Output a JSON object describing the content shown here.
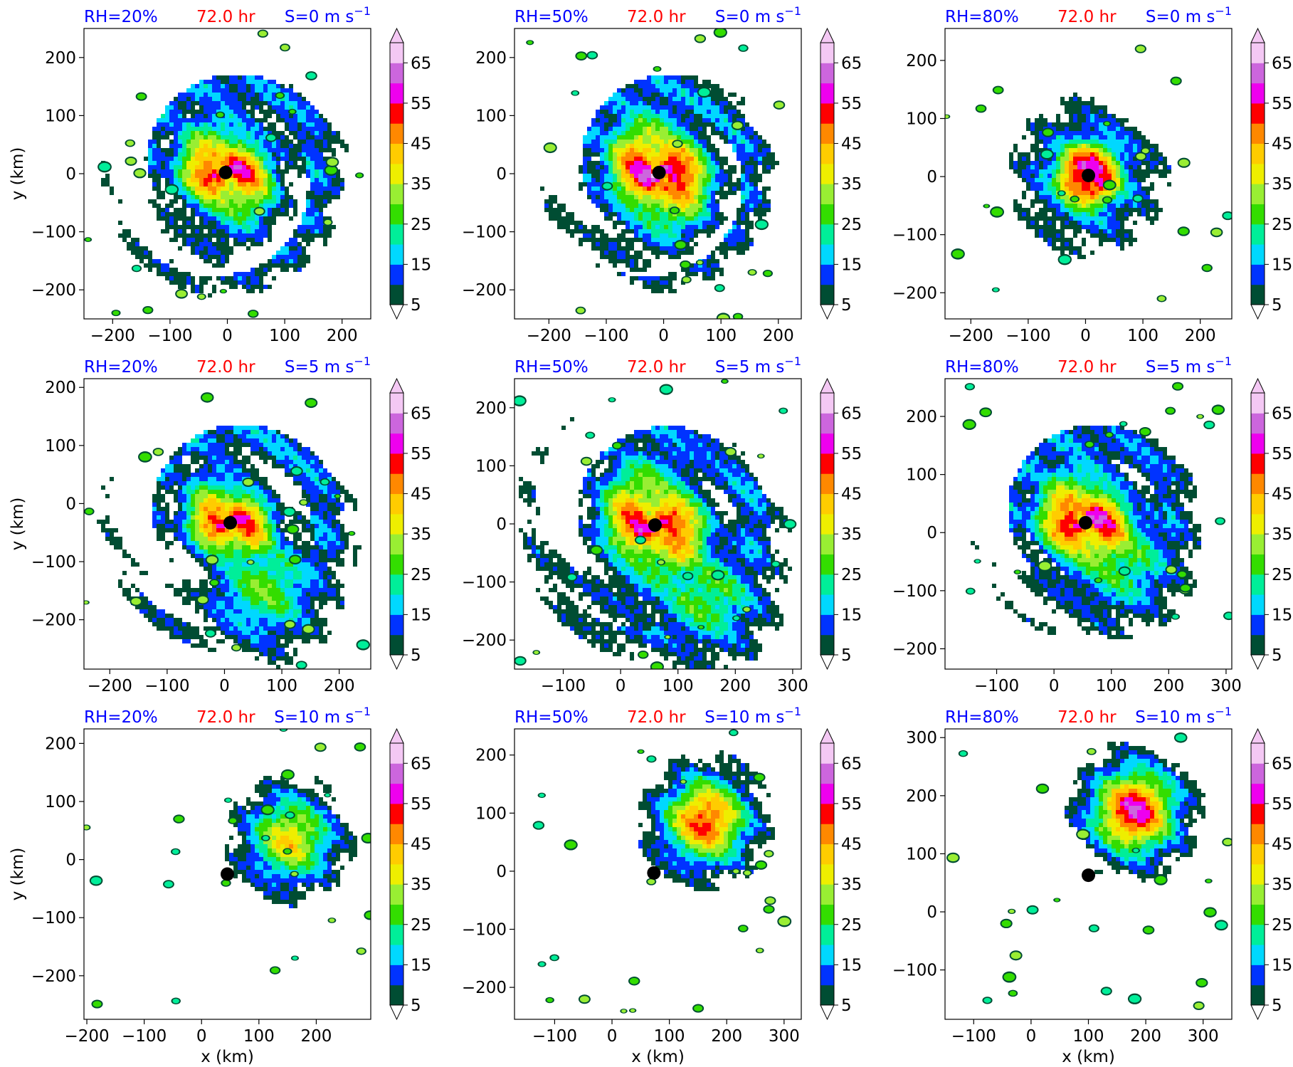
{
  "colors": {
    "label_blue": "#0000ff",
    "label_red": "#ff0000",
    "center_marker": "#000000",
    "levels": [
      "#004d33",
      "#0033ff",
      "#00d8ff",
      "#00ee99",
      "#33dd00",
      "#99ee33",
      "#eeee00",
      "#ffcc00",
      "#ff8800",
      "#ff0000",
      "#ee00ee",
      "#cc66dd",
      "#f4c8f4"
    ]
  },
  "colorbar": {
    "ticks": [
      "5",
      "15",
      "25",
      "35",
      "45",
      "55",
      "65"
    ]
  },
  "chart_data": [
    {
      "type": "heatmap",
      "rh_label": "RH=20%",
      "time_label": "72.0 hr",
      "shear_label": "S=0 m s",
      "shear_exp": "−1",
      "xlim": [
        -250,
        250
      ],
      "ylim": [
        -250,
        250
      ],
      "xticks": [
        {
          "v": -200,
          "t": "−200"
        },
        {
          "v": -100,
          "t": "−100"
        },
        {
          "v": 0,
          "t": "0"
        },
        {
          "v": 100,
          "t": "100"
        },
        {
          "v": 200,
          "t": "200"
        }
      ],
      "yticks": [
        {
          "v": -200,
          "t": "−200"
        },
        {
          "v": -100,
          "t": "−100"
        },
        {
          "v": 0,
          "t": "0"
        },
        {
          "v": 100,
          "t": "100"
        },
        {
          "v": 200,
          "t": "200"
        }
      ],
      "ylabel": "y (km)",
      "xlabel": "",
      "center": [
        -3,
        2
      ],
      "inner_radius": 125,
      "band_radius": 190,
      "core_max": 48,
      "spiral": true,
      "storm_offset": [
        0,
        0
      ]
    },
    {
      "type": "heatmap",
      "rh_label": "RH=50%",
      "time_label": "72.0 hr",
      "shear_label": "S=0 m s",
      "shear_exp": "−1",
      "xlim": [
        -260,
        240
      ],
      "ylim": [
        -250,
        250
      ],
      "xticks": [
        {
          "v": -200,
          "t": "−200"
        },
        {
          "v": -100,
          "t": "−100"
        },
        {
          "v": 0,
          "t": "0"
        },
        {
          "v": 100,
          "t": "100"
        },
        {
          "v": 200,
          "t": "200"
        }
      ],
      "yticks": [
        {
          "v": -200,
          "t": "−200"
        },
        {
          "v": -100,
          "t": "−100"
        },
        {
          "v": 0,
          "t": "0"
        },
        {
          "v": 100,
          "t": "100"
        },
        {
          "v": 200,
          "t": "200"
        }
      ],
      "ylabel": "",
      "xlabel": "",
      "center": [
        -8,
        2
      ],
      "inner_radius": 140,
      "band_radius": 180,
      "core_max": 52,
      "spiral": true,
      "storm_offset": [
        0,
        0
      ]
    },
    {
      "type": "heatmap",
      "rh_label": "RH=80%",
      "time_label": "72.0 hr",
      "shear_label": "S=0 m s",
      "shear_exp": "−1",
      "xlim": [
        -245,
        255
      ],
      "ylim": [
        -245,
        255
      ],
      "xticks": [
        {
          "v": -200,
          "t": "−200"
        },
        {
          "v": -100,
          "t": "−100"
        },
        {
          "v": 0,
          "t": "0"
        },
        {
          "v": 100,
          "t": "100"
        },
        {
          "v": 200,
          "t": "200"
        }
      ],
      "yticks": [
        {
          "v": -200,
          "t": "−200"
        },
        {
          "v": -100,
          "t": "−100"
        },
        {
          "v": 0,
          "t": "0"
        },
        {
          "v": 100,
          "t": "100"
        },
        {
          "v": 200,
          "t": "200"
        }
      ],
      "ylabel": "",
      "xlabel": "",
      "center": [
        5,
        2
      ],
      "inner_radius": 85,
      "band_radius": 120,
      "core_max": 55,
      "spiral": false,
      "storm_offset": [
        0,
        0
      ]
    },
    {
      "type": "heatmap",
      "rh_label": "RH=20%",
      "time_label": "72.0 hr",
      "shear_label": "S=5 m s",
      "shear_exp": "−1",
      "xlim": [
        -245,
        255
      ],
      "ylim": [
        -285,
        215
      ],
      "xticks": [
        {
          "v": -200,
          "t": "−200"
        },
        {
          "v": -100,
          "t": "−100"
        },
        {
          "v": 0,
          "t": "0"
        },
        {
          "v": 100,
          "t": "100"
        },
        {
          "v": 200,
          "t": "200"
        }
      ],
      "yticks": [
        {
          "v": -200,
          "t": "−200"
        },
        {
          "v": -100,
          "t": "−100"
        },
        {
          "v": 0,
          "t": "0"
        },
        {
          "v": 100,
          "t": "100"
        },
        {
          "v": 200,
          "t": "200"
        }
      ],
      "ylabel": "y (km)",
      "xlabel": "",
      "center": [
        10,
        -33
      ],
      "inner_radius": 110,
      "band_radius": 200,
      "core_max": 47,
      "spiral": true,
      "storm_offset": [
        60,
        -110
      ]
    },
    {
      "type": "heatmap",
      "rh_label": "RH=50%",
      "time_label": "72.0 hr",
      "shear_label": "S=5 m s",
      "shear_exp": "−1",
      "xlim": [
        -185,
        315
      ],
      "ylim": [
        -250,
        250
      ],
      "xticks": [
        {
          "v": -100,
          "t": "−100"
        },
        {
          "v": 0,
          "t": "0"
        },
        {
          "v": 100,
          "t": "100"
        },
        {
          "v": 200,
          "t": "200"
        },
        {
          "v": 300,
          "t": "300"
        }
      ],
      "yticks": [
        {
          "v": -200,
          "t": "−200"
        },
        {
          "v": -100,
          "t": "−100"
        },
        {
          "v": 0,
          "t": "0"
        },
        {
          "v": 100,
          "t": "100"
        },
        {
          "v": 200,
          "t": "200"
        }
      ],
      "ylabel": "",
      "xlabel": "",
      "center": [
        60,
        -2
      ],
      "inner_radius": 150,
      "band_radius": 215,
      "core_max": 48,
      "spiral": true,
      "storm_offset": [
        90,
        -120
      ]
    },
    {
      "type": "heatmap",
      "rh_label": "RH=80%",
      "time_label": "72.0 hr",
      "shear_label": "S=5 m s",
      "shear_exp": "−1",
      "xlim": [
        -190,
        310
      ],
      "ylim": [
        -235,
        265
      ],
      "xticks": [
        {
          "v": -100,
          "t": "−100"
        },
        {
          "v": 0,
          "t": "0"
        },
        {
          "v": 100,
          "t": "100"
        },
        {
          "v": 200,
          "t": "200"
        },
        {
          "v": 300,
          "t": "300"
        }
      ],
      "yticks": [
        {
          "v": -200,
          "t": "−200"
        },
        {
          "v": -100,
          "t": "−100"
        },
        {
          "v": 0,
          "t": "0"
        },
        {
          "v": 100,
          "t": "100"
        },
        {
          "v": 200,
          "t": "200"
        }
      ],
      "ylabel": "",
      "xlabel": "",
      "center": [
        55,
        17
      ],
      "inner_radius": 130,
      "band_radius": 175,
      "core_max": 50,
      "spiral": true,
      "storm_offset": [
        60,
        -60
      ]
    },
    {
      "type": "heatmap",
      "rh_label": "RH=20%",
      "time_label": "72.0 hr",
      "shear_label": "S=10 m s",
      "shear_exp": "−1",
      "xlim": [
        -205,
        295
      ],
      "ylim": [
        -275,
        225
      ],
      "xticks": [
        {
          "v": -200,
          "t": "−200"
        },
        {
          "v": -100,
          "t": "−100"
        },
        {
          "v": 0,
          "t": "0"
        },
        {
          "v": 100,
          "t": "100"
        },
        {
          "v": 200,
          "t": "200"
        }
      ],
      "yticks": [
        {
          "v": -200,
          "t": "−200"
        },
        {
          "v": -100,
          "t": "−100"
        },
        {
          "v": 0,
          "t": "0"
        },
        {
          "v": 100,
          "t": "100"
        },
        {
          "v": 200,
          "t": "200"
        }
      ],
      "ylabel": "y (km)",
      "xlabel": "x (km)",
      "center": [
        45,
        -25
      ],
      "inner_radius": 0,
      "band_radius": 0,
      "core_max": 40,
      "spiral": false,
      "storm_offset": [
        110,
        60
      ]
    },
    {
      "type": "heatmap",
      "rh_label": "RH=50%",
      "time_label": "72.0 hr",
      "shear_label": "S=10 m s",
      "shear_exp": "−1",
      "xlim": [
        -170,
        330
      ],
      "ylim": [
        -255,
        245
      ],
      "xticks": [
        {
          "v": -100,
          "t": "−100"
        },
        {
          "v": 0,
          "t": "0"
        },
        {
          "v": 100,
          "t": "100"
        },
        {
          "v": 200,
          "t": "200"
        },
        {
          "v": 300,
          "t": "300"
        }
      ],
      "yticks": [
        {
          "v": -200,
          "t": "−200"
        },
        {
          "v": -100,
          "t": "−100"
        },
        {
          "v": 0,
          "t": "0"
        },
        {
          "v": 100,
          "t": "100"
        },
        {
          "v": 200,
          "t": "200"
        }
      ],
      "ylabel": "",
      "xlabel": "x (km)",
      "center": [
        73,
        -3
      ],
      "inner_radius": 0,
      "band_radius": 0,
      "core_max": 52,
      "spiral": false,
      "storm_offset": [
        90,
        90
      ]
    },
    {
      "type": "heatmap",
      "rh_label": "RH=80%",
      "time_label": "72.0 hr",
      "shear_label": "S=10 m s",
      "shear_exp": "−1",
      "xlim": [
        -150,
        350
      ],
      "ylim": [
        -185,
        315
      ],
      "xticks": [
        {
          "v": -100,
          "t": "−100"
        },
        {
          "v": 0,
          "t": "0"
        },
        {
          "v": 100,
          "t": "100"
        },
        {
          "v": 200,
          "t": "200"
        },
        {
          "v": 300,
          "t": "300"
        }
      ],
      "yticks": [
        {
          "v": -100,
          "t": "−100"
        },
        {
          "v": 0,
          "t": "0"
        },
        {
          "v": 100,
          "t": "100"
        },
        {
          "v": 200,
          "t": "200"
        },
        {
          "v": 300,
          "t": "300"
        }
      ],
      "ylabel": "",
      "xlabel": "x (km)",
      "center": [
        100,
        63
      ],
      "inner_radius": 0,
      "band_radius": 0,
      "core_max": 58,
      "spiral": false,
      "storm_offset": [
        80,
        110
      ]
    }
  ]
}
